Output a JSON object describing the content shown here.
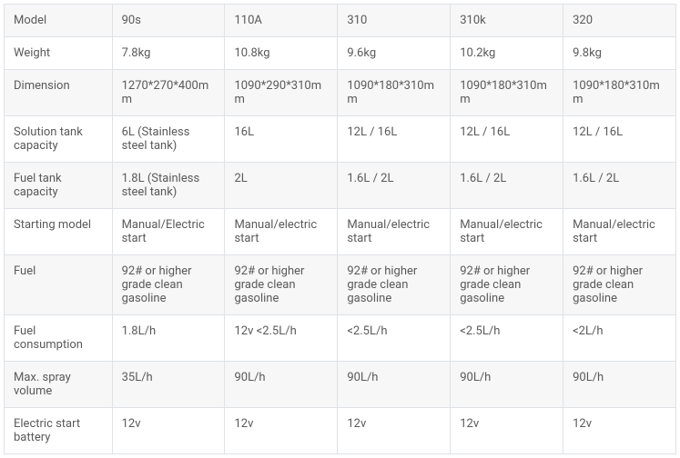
{
  "spec_table": {
    "type": "table",
    "row_labels": [
      "Model",
      "Weight",
      "Dimension",
      "Solution tank capacity",
      "Fuel tank capacity",
      "Starting model",
      "Fuel",
      "Fuel consumption",
      "Max. spray volume",
      "Electric start battery"
    ],
    "columns": [
      "90s",
      "110A",
      "310",
      "310k",
      "320"
    ],
    "rows": [
      [
        "90s",
        "110A",
        "310",
        "310k",
        "320"
      ],
      [
        "7.8kg",
        "10.8kg",
        "9.6kg",
        "10.2kg",
        "9.8kg"
      ],
      [
        "1270*270*400mm",
        "1090*290*310mm",
        "1090*180*310mm",
        "1090*180*310mm",
        "1090*180*310mm"
      ],
      [
        "6L (Stainless steel tank)",
        "16L",
        "12L / 16L",
        "12L / 16L",
        "12L / 16L"
      ],
      [
        "1.8L (Stainless steel tank)",
        "2L",
        "1.6L / 2L",
        "1.6L / 2L",
        "1.6L / 2L"
      ],
      [
        "Manual/Electric start",
        "Manual/electric start",
        "Manual/electric start",
        "Manual/electric start",
        "Manual/electric start"
      ],
      [
        "92# or higher grade clean gasoline",
        "92# or higher grade clean gasoline",
        "92# or higher grade clean gasoline",
        "92# or higher grade clean gasoline",
        "92# or higher grade clean gasoline"
      ],
      [
        "1.8L/h",
        "12v <2.5L/h",
        "<2.5L/h",
        "<2.5L/h",
        "<2L/h"
      ],
      [
        "35L/h",
        "90L/h",
        "90L/h",
        "90L/h",
        "90L/h"
      ],
      [
        "12v",
        "12v",
        "12v",
        "12v",
        "12v"
      ]
    ],
    "styling": {
      "border_color": "#dee2e6",
      "stripe_odd_bg": "#f7f7f7",
      "stripe_even_bg": "#ffffff",
      "text_color": "#5a5a5a",
      "font_size": 13,
      "cell_padding": "10px",
      "row_label_width": 112,
      "data_col_width": 117
    }
  }
}
